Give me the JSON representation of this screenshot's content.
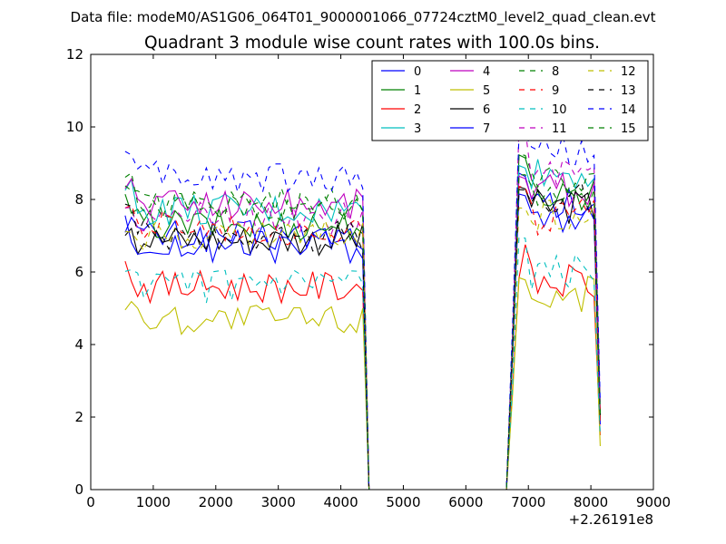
{
  "header": "Data file: modeM0/AS1G06_064T01_9000001066_07724cztM0_level2_quad_clean.evt",
  "chart_data": {
    "type": "line",
    "title": "Quadrant 3 module wise count rates with 100.0s bins.",
    "xlabel": "",
    "ylabel": "",
    "x_offset_label": "+2.26191e8",
    "xlim": [
      0,
      9000
    ],
    "ylim": [
      0,
      12
    ],
    "x_ticks": [
      0,
      1000,
      2000,
      3000,
      4000,
      5000,
      6000,
      7000,
      8000,
      9000
    ],
    "y_ticks": [
      0,
      2,
      4,
      6,
      8,
      10,
      12
    ],
    "grid": false,
    "legend": {
      "position": "top-right",
      "columns": 4
    },
    "x": [
      550,
      650,
      750,
      850,
      950,
      1050,
      1150,
      1250,
      1350,
      1450,
      1550,
      1650,
      1750,
      1850,
      1950,
      2050,
      2150,
      2250,
      2350,
      2450,
      2550,
      2650,
      2750,
      2850,
      2950,
      3050,
      3150,
      3250,
      3350,
      3450,
      3550,
      3650,
      3750,
      3850,
      3950,
      4050,
      4150,
      4250,
      4350,
      4450,
      4550,
      4650,
      4750,
      4850,
      4950,
      5050,
      5150,
      5250,
      5350,
      5450,
      5550,
      5650,
      5750,
      5850,
      5950,
      6050,
      6150,
      6250,
      6350,
      6450,
      6550,
      6650,
      6750,
      6850,
      6950,
      7050,
      7150,
      7250,
      7350,
      7450,
      7550,
      7650,
      7750,
      7850,
      7950,
      8050,
      8150
    ],
    "series": [
      {
        "name": "0",
        "color": "#0000ff",
        "dash": false,
        "level1": 7.0,
        "level2": 7.8,
        "end": 1.9
      },
      {
        "name": "1",
        "color": "#008000",
        "dash": false,
        "level1": 7.3,
        "level2": 8.2,
        "end": 2.0
      },
      {
        "name": "2",
        "color": "#ff0000",
        "dash": false,
        "level1": 5.6,
        "level2": 5.7,
        "end": 1.5
      },
      {
        "name": "3",
        "color": "#00bfbf",
        "dash": false,
        "level1": 7.7,
        "level2": 8.7,
        "end": 2.2
      },
      {
        "name": "4",
        "color": "#bf00bf",
        "dash": false,
        "level1": 7.9,
        "level2": 8.3,
        "end": 2.1
      },
      {
        "name": "5",
        "color": "#bfbf00",
        "dash": false,
        "level1": 4.7,
        "level2": 5.4,
        "end": 1.2
      },
      {
        "name": "6",
        "color": "#000000",
        "dash": false,
        "level1": 6.9,
        "level2": 7.8,
        "end": 1.9
      },
      {
        "name": "7",
        "color": "#0000ff",
        "dash": false,
        "level1": 6.7,
        "level2": 7.5,
        "end": 1.8
      },
      {
        "name": "8",
        "color": "#008000",
        "dash": true,
        "level1": 7.9,
        "level2": 8.5,
        "end": 2.1
      },
      {
        "name": "9",
        "color": "#ff0000",
        "dash": true,
        "level1": 7.2,
        "level2": 7.5,
        "end": 1.9
      },
      {
        "name": "10",
        "color": "#00bfbf",
        "dash": true,
        "level1": 5.6,
        "level2": 6.0,
        "end": 1.5
      },
      {
        "name": "11",
        "color": "#bf00bf",
        "dash": true,
        "level1": 7.5,
        "level2": 8.9,
        "end": 2.3
      },
      {
        "name": "12",
        "color": "#bfbf00",
        "dash": true,
        "level1": 7.0,
        "level2": 7.6,
        "end": 1.9
      },
      {
        "name": "13",
        "color": "#000000",
        "dash": true,
        "level1": 7.0,
        "level2": 8.0,
        "end": 2.0
      },
      {
        "name": "14",
        "color": "#0000ff",
        "dash": true,
        "level1": 8.6,
        "level2": 9.4,
        "end": 2.4
      },
      {
        "name": "15",
        "color": "#008000",
        "dash": true,
        "level1": 7.8,
        "level2": 8.2,
        "end": 2.1
      }
    ]
  }
}
